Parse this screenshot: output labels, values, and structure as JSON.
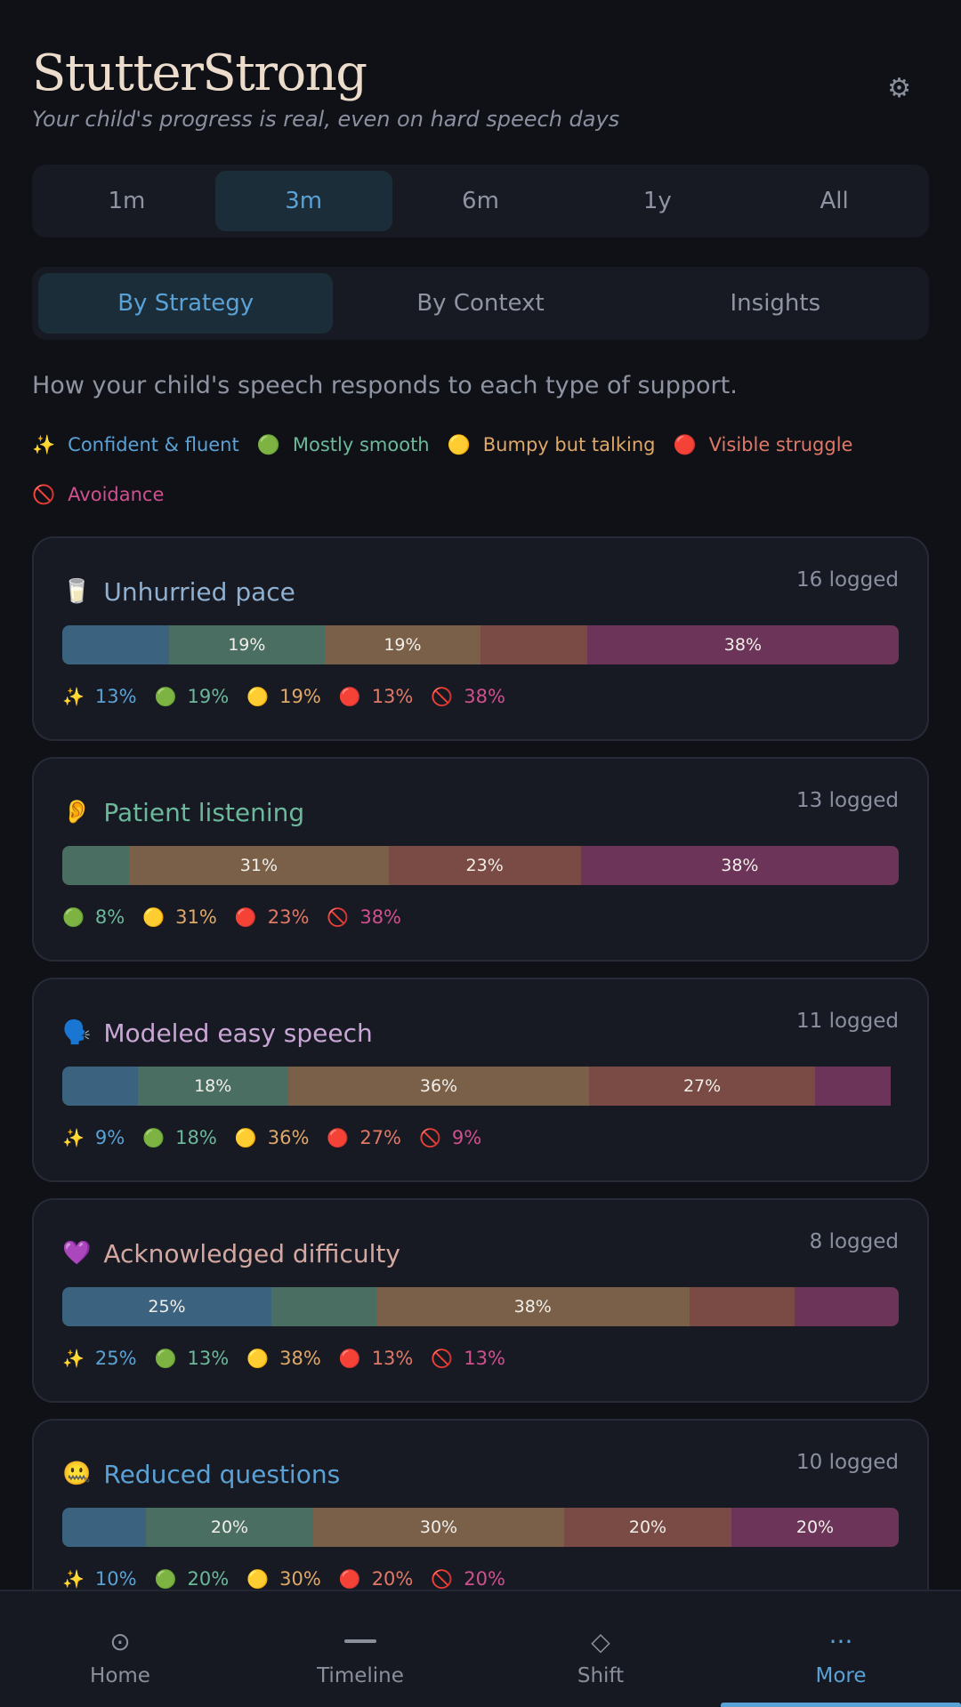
{
  "app": {
    "title": "StutterStrong",
    "subtitle": "Your child's progress is real, even on hard speech days"
  },
  "time_ranges": [
    {
      "label": "1m",
      "active": false
    },
    {
      "label": "3m",
      "active": true
    },
    {
      "label": "6m",
      "active": false
    },
    {
      "label": "1y",
      "active": false
    },
    {
      "label": "All",
      "active": false
    }
  ],
  "view_tabs": [
    {
      "label": "By Strategy",
      "active": true
    },
    {
      "label": "By Context",
      "active": false
    },
    {
      "label": "Insights",
      "active": false
    }
  ],
  "intro": "How your child's speech responds to each type of support.",
  "colors": {
    "confident": {
      "bar": "#3b6380",
      "text": "#5aa2d6"
    },
    "smooth": {
      "bar": "#4a6e62",
      "text": "#6cb89a"
    },
    "bumpy": {
      "bar": "#7a6049",
      "text": "#e0a868"
    },
    "struggle": {
      "bar": "#7a4a44",
      "text": "#e07868"
    },
    "avoidance": {
      "bar": "#6b3458",
      "text": "#d0508f"
    }
  },
  "legend": [
    {
      "key": "confident",
      "icon": "✨",
      "label": "Confident & fluent"
    },
    {
      "key": "smooth",
      "icon": "🟢",
      "label": "Mostly smooth"
    },
    {
      "key": "bumpy",
      "icon": "🟡",
      "label": "Bumpy but talking"
    },
    {
      "key": "struggle",
      "icon": "🔴",
      "label": "Visible struggle"
    },
    {
      "key": "avoidance",
      "icon": "🚫",
      "label": "Avoidance"
    }
  ],
  "strategies": [
    {
      "icon": "🥛",
      "name": "Unhurried pace",
      "name_color": "#8fb0d0",
      "count": "16 logged",
      "segments": [
        {
          "key": "confident",
          "pct": 13,
          "label": ""
        },
        {
          "key": "smooth",
          "pct": 19,
          "label": "19%"
        },
        {
          "key": "bumpy",
          "pct": 19,
          "label": "19%"
        },
        {
          "key": "struggle",
          "pct": 13,
          "label": ""
        },
        {
          "key": "avoidance",
          "pct": 38,
          "label": "38%"
        }
      ],
      "stats": [
        {
          "key": "confident",
          "text": "13%"
        },
        {
          "key": "smooth",
          "text": "19%"
        },
        {
          "key": "bumpy",
          "text": "19%"
        },
        {
          "key": "struggle",
          "text": "13%"
        },
        {
          "key": "avoidance",
          "text": "38%"
        }
      ]
    },
    {
      "icon": "👂",
      "name": "Patient listening",
      "name_color": "#6cb89a",
      "count": "13 logged",
      "segments": [
        {
          "key": "smooth",
          "pct": 8,
          "label": ""
        },
        {
          "key": "bumpy",
          "pct": 31,
          "label": "31%"
        },
        {
          "key": "struggle",
          "pct": 23,
          "label": "23%"
        },
        {
          "key": "avoidance",
          "pct": 38,
          "label": "38%"
        }
      ],
      "stats": [
        {
          "key": "smooth",
          "text": "8%"
        },
        {
          "key": "bumpy",
          "text": "31%"
        },
        {
          "key": "struggle",
          "text": "23%"
        },
        {
          "key": "avoidance",
          "text": "38%"
        }
      ]
    },
    {
      "icon": "🗣️",
      "name": "Modeled easy speech",
      "name_color": "#c9a6d6",
      "count": "11 logged",
      "segments": [
        {
          "key": "confident",
          "pct": 9,
          "label": ""
        },
        {
          "key": "smooth",
          "pct": 18,
          "label": "18%"
        },
        {
          "key": "bumpy",
          "pct": 36,
          "label": "36%"
        },
        {
          "key": "struggle",
          "pct": 27,
          "label": "27%"
        },
        {
          "key": "avoidance",
          "pct": 9,
          "label": ""
        }
      ],
      "stats": [
        {
          "key": "confident",
          "text": "9%"
        },
        {
          "key": "smooth",
          "text": "18%"
        },
        {
          "key": "bumpy",
          "text": "36%"
        },
        {
          "key": "struggle",
          "text": "27%"
        },
        {
          "key": "avoidance",
          "text": "9%"
        }
      ]
    },
    {
      "icon": "💜",
      "name": "Acknowledged difficulty",
      "name_color": "#d4a8a0",
      "count": "8 logged",
      "segments": [
        {
          "key": "confident",
          "pct": 25,
          "label": "25%"
        },
        {
          "key": "smooth",
          "pct": 12.5,
          "label": ""
        },
        {
          "key": "bumpy",
          "pct": 37.5,
          "label": "38%"
        },
        {
          "key": "struggle",
          "pct": 12.5,
          "label": ""
        },
        {
          "key": "avoidance",
          "pct": 12.5,
          "label": ""
        }
      ],
      "stats": [
        {
          "key": "confident",
          "text": "25%"
        },
        {
          "key": "smooth",
          "text": "13%"
        },
        {
          "key": "bumpy",
          "text": "38%"
        },
        {
          "key": "struggle",
          "text": "13%"
        },
        {
          "key": "avoidance",
          "text": "13%"
        }
      ]
    },
    {
      "icon": "🤐",
      "name": "Reduced questions",
      "name_color": "#5aa2d6",
      "count": "10 logged",
      "segments": [
        {
          "key": "confident",
          "pct": 10,
          "label": ""
        },
        {
          "key": "smooth",
          "pct": 20,
          "label": "20%"
        },
        {
          "key": "bumpy",
          "pct": 30,
          "label": "30%"
        },
        {
          "key": "struggle",
          "pct": 20,
          "label": "20%"
        },
        {
          "key": "avoidance",
          "pct": 20,
          "label": "20%"
        }
      ],
      "stats": [
        {
          "key": "confident",
          "text": "10%"
        },
        {
          "key": "smooth",
          "text": "20%"
        },
        {
          "key": "bumpy",
          "text": "30%"
        },
        {
          "key": "struggle",
          "text": "20%"
        },
        {
          "key": "avoidance",
          "text": "20%"
        }
      ]
    }
  ],
  "nav": [
    {
      "icon": "⊙",
      "icon_name": "home-icon",
      "label": "Home",
      "active": false
    },
    {
      "icon": "",
      "icon_name": "timeline-icon",
      "label": "Timeline",
      "active": false
    },
    {
      "icon": "◇",
      "icon_name": "shift-icon",
      "label": "Shift",
      "active": false
    },
    {
      "icon": "···",
      "icon_name": "more-icon",
      "label": "More",
      "active": true
    }
  ]
}
